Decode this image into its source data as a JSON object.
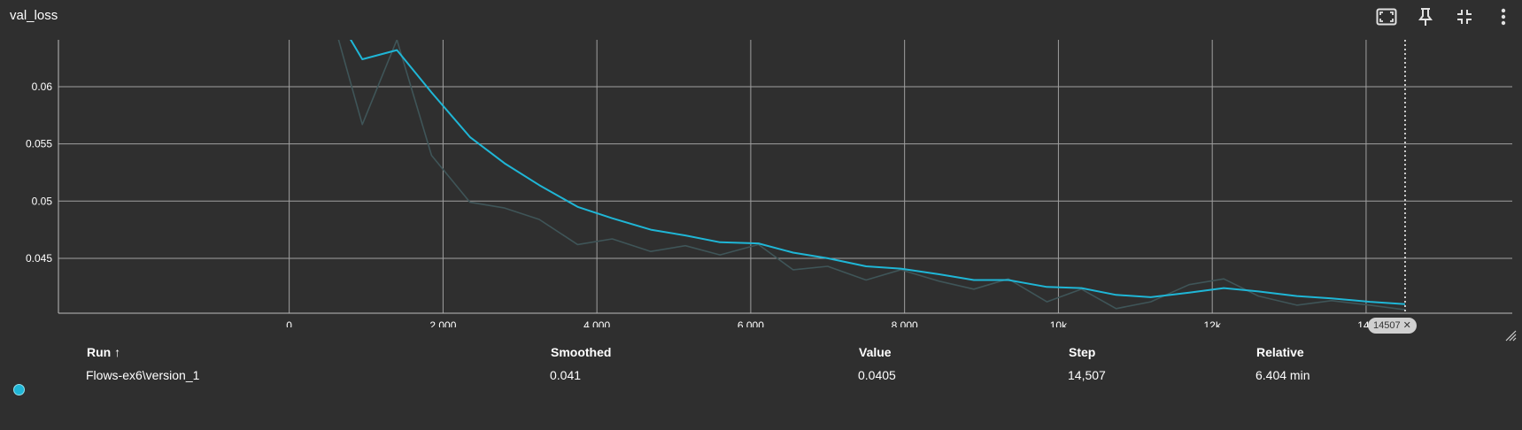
{
  "title": "val_loss",
  "toolbar": [
    {
      "icon": "fit-domain-icon"
    },
    {
      "icon": "pin-icon"
    },
    {
      "icon": "collapse-icon"
    },
    {
      "icon": "more-vert-icon"
    }
  ],
  "colors": {
    "background": "#2f2f2f",
    "grid": "#a0a0a0",
    "smoothed": "#1fb6d6",
    "raw": "#3f5558"
  },
  "chart_data": {
    "type": "line",
    "title": "val_loss",
    "xlabel": "",
    "ylabel": "",
    "xlim": [
      -3000,
      15900
    ],
    "ylim": [
      0.0402,
      0.0641
    ],
    "x_ticks": [
      {
        "value": 0,
        "label": "0"
      },
      {
        "value": 2000,
        "label": "2,000"
      },
      {
        "value": 4000,
        "label": "4,000"
      },
      {
        "value": 6000,
        "label": "6,000"
      },
      {
        "value": 8000,
        "label": "8,000"
      },
      {
        "value": 10000,
        "label": "10k"
      },
      {
        "value": 12000,
        "label": "12k"
      },
      {
        "value": 14000,
        "label": "14k"
      }
    ],
    "y_ticks": [
      {
        "value": 0.045,
        "label": "0.045"
      },
      {
        "value": 0.05,
        "label": "0.05"
      },
      {
        "value": 0.055,
        "label": "0.055"
      },
      {
        "value": 0.06,
        "label": "0.06"
      }
    ],
    "grid": true,
    "series": [
      {
        "name": "Smoothed",
        "x": [
          500,
          950,
          1400,
          1850,
          2350,
          2800,
          3250,
          3750,
          4200,
          4700,
          5150,
          5600,
          6100,
          6550,
          7000,
          7500,
          7950,
          8450,
          8900,
          9350,
          9850,
          10300,
          10750,
          11200,
          11700,
          12150,
          12600,
          13100,
          13550,
          14050,
          14507
        ],
        "y": [
          0.0675,
          0.0624,
          0.0632,
          0.0595,
          0.0556,
          0.0533,
          0.0514,
          0.0495,
          0.0485,
          0.0475,
          0.047,
          0.0464,
          0.0463,
          0.0455,
          0.045,
          0.0443,
          0.0441,
          0.0436,
          0.0431,
          0.0431,
          0.0425,
          0.0424,
          0.0418,
          0.0416,
          0.042,
          0.0424,
          0.0421,
          0.0417,
          0.0415,
          0.0412,
          0.041
        ]
      },
      {
        "name": "Value",
        "x": [
          500,
          950,
          1400,
          1850,
          2350,
          2800,
          3250,
          3750,
          4200,
          4700,
          5150,
          5600,
          6100,
          6550,
          7000,
          7500,
          7950,
          8450,
          8900,
          9350,
          9850,
          10300,
          10750,
          11200,
          11700,
          12150,
          12600,
          13100,
          13550,
          14050,
          14507
        ],
        "y": [
          0.0675,
          0.0567,
          0.0641,
          0.054,
          0.0499,
          0.0494,
          0.0484,
          0.0462,
          0.0467,
          0.0456,
          0.0461,
          0.0453,
          0.0462,
          0.044,
          0.0443,
          0.0431,
          0.044,
          0.043,
          0.0423,
          0.0432,
          0.0412,
          0.0423,
          0.0406,
          0.0412,
          0.0427,
          0.0432,
          0.0417,
          0.0409,
          0.0413,
          0.0409,
          0.0405
        ]
      }
    ],
    "cursor_step": 14507
  },
  "step_badge": {
    "label": "14507",
    "close": "✕"
  },
  "table": {
    "headers": {
      "run": "Run ↑",
      "smoothed": "Smoothed",
      "value": "Value",
      "step": "Step",
      "relative": "Relative"
    },
    "rows": [
      {
        "color": "#1fb6d6",
        "run": "Flows-ex6\\version_1",
        "smoothed": "0.041",
        "value": "0.0405",
        "step": "14,507",
        "relative": "6.404 min"
      }
    ]
  }
}
